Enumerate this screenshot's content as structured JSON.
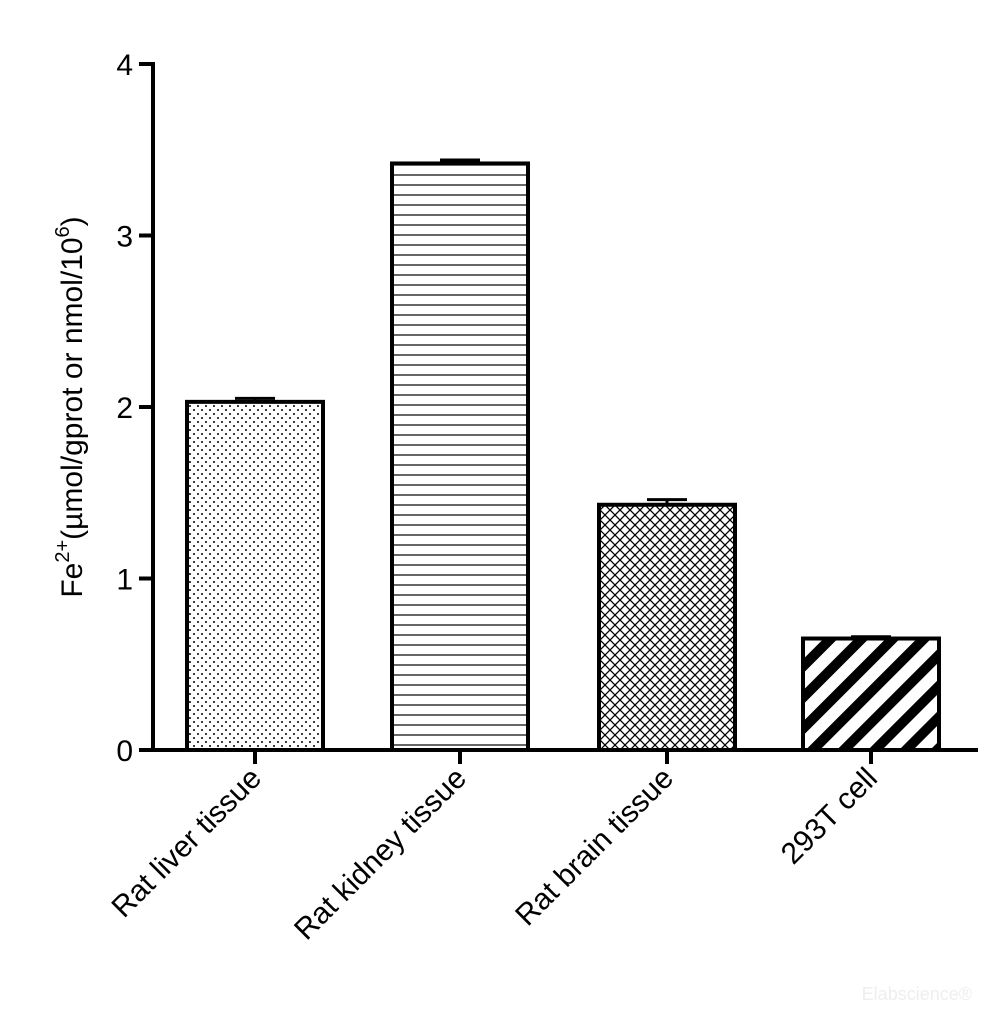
{
  "chart_data": {
    "type": "bar",
    "categories": [
      "Rat liver tissue",
      "Rat kidney tissue",
      "Rat brain tissue",
      "293T cell"
    ],
    "values": [
      2.03,
      3.42,
      1.43,
      0.65
    ],
    "errors": [
      0.02,
      0.02,
      0.03,
      0.01
    ],
    "patterns": [
      "dots",
      "horizontal-lines",
      "crosshatch",
      "diagonal-stripes"
    ],
    "title": "",
    "xlabel": "",
    "ylabel": {
      "prefix": "Fe",
      "superscript": "2+",
      "text": "(µmol/gprot or nmol/10",
      "superscript2": "6",
      "suffix": ")"
    },
    "ylim": [
      0,
      4
    ],
    "yticks": [
      "0",
      "1",
      "2",
      "3",
      "4"
    ],
    "grid": false,
    "legend": "none"
  },
  "watermark": "Elabscience®"
}
